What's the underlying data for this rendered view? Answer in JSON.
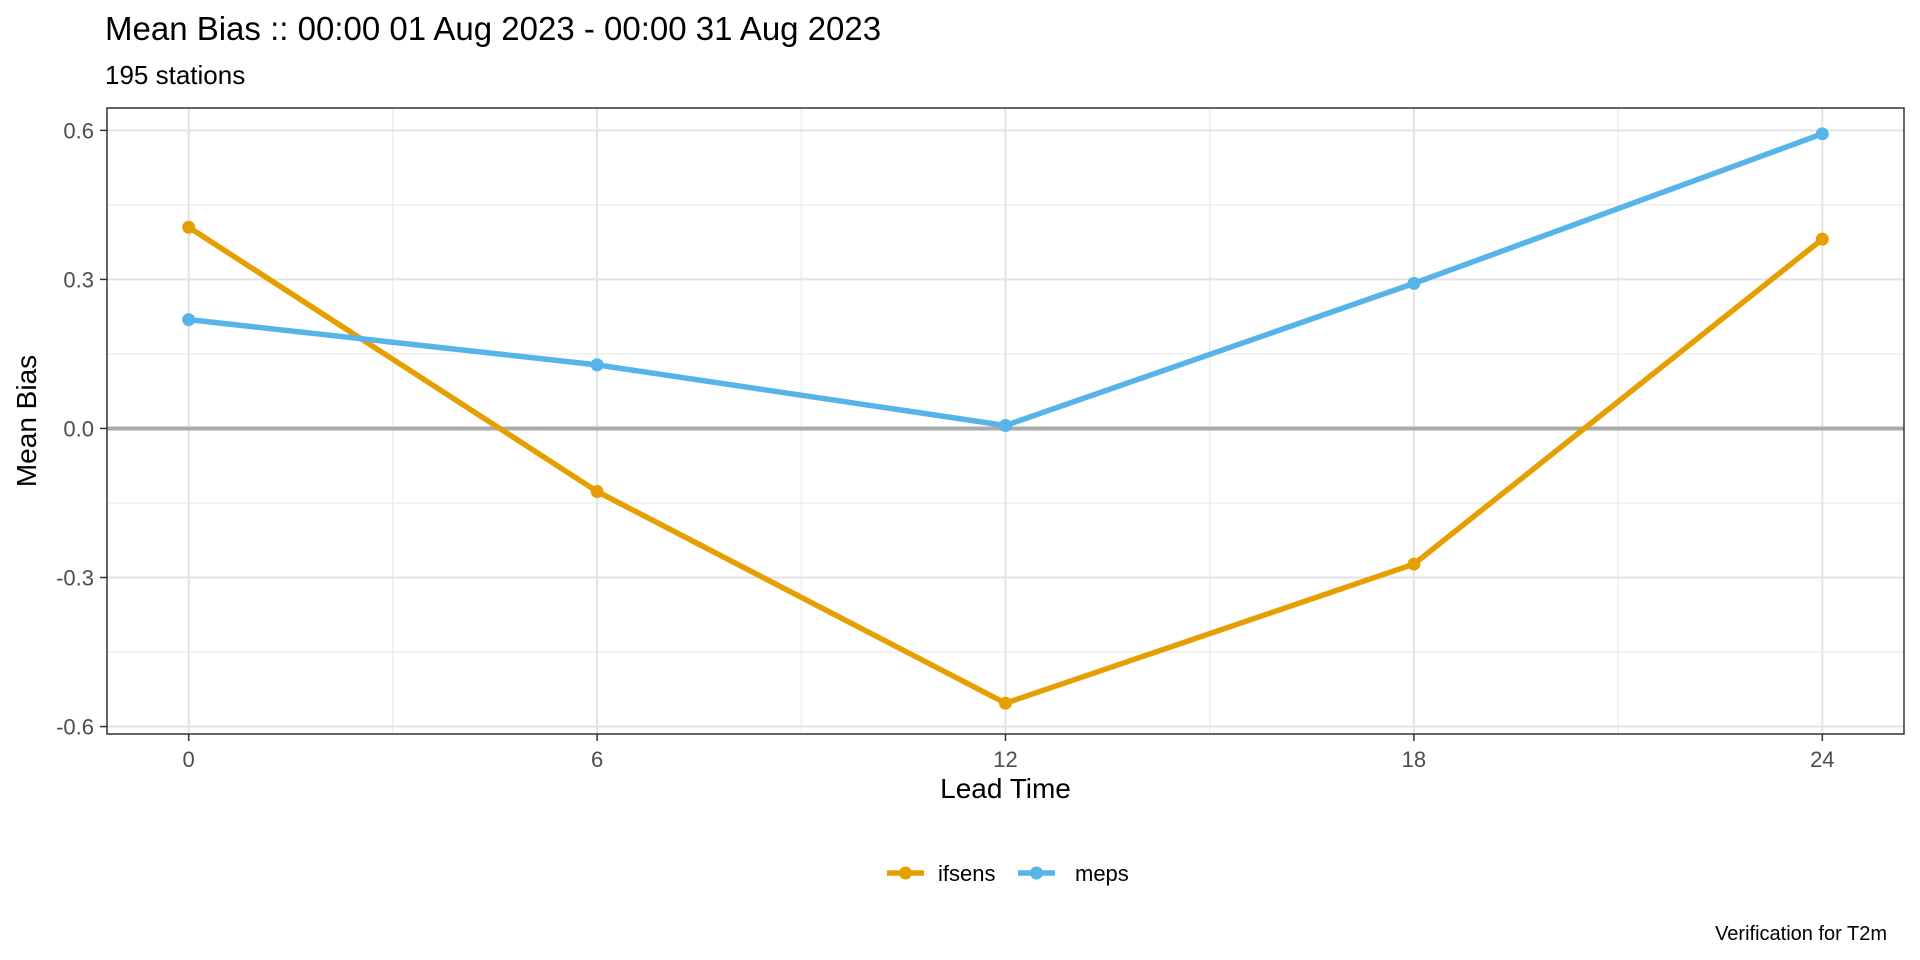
{
  "chart_data": {
    "type": "line",
    "title": "Mean Bias :: 00:00 01 Aug 2023 - 00:00 31 Aug 2023",
    "subtitle": "195 stations",
    "xlabel": "Lead Time",
    "ylabel": "Mean Bias",
    "caption": "Verification for T2m",
    "x": [
      0,
      6,
      12,
      18,
      24
    ],
    "xlim": [
      -1.2,
      25.2
    ],
    "ylim": [
      -0.615,
      0.645
    ],
    "xticks": [
      0,
      6,
      12,
      18,
      24
    ],
    "xtick_labels": [
      "0",
      "6",
      "12",
      "18",
      "24"
    ],
    "yticks": [
      -0.6,
      -0.3,
      0.0,
      0.3,
      0.6
    ],
    "ytick_labels": [
      "-0.6",
      "-0.3",
      "0.0",
      "0.3",
      "0.6"
    ],
    "reference_line_y": 0,
    "grid": true,
    "legend_position": "bottom",
    "series": [
      {
        "name": "ifsens",
        "color": "#E69F00",
        "values": [
          0.405,
          -0.127,
          -0.553,
          -0.273,
          0.381
        ]
      },
      {
        "name": "meps",
        "color": "#56B4E9",
        "values": [
          0.219,
          0.128,
          0.006,
          0.292,
          0.593
        ]
      }
    ]
  }
}
